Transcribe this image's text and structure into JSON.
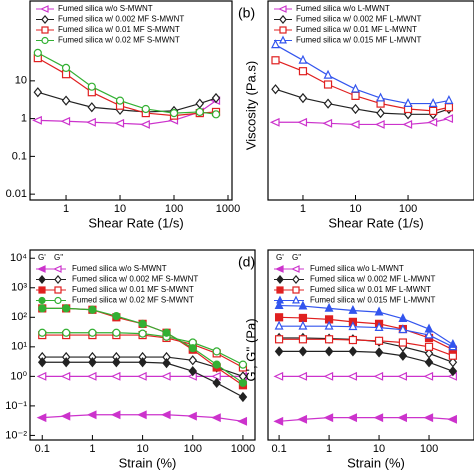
{
  "chart_data": [
    {
      "type": "line",
      "log_x": true,
      "log_y": true,
      "xlabel": "Shear Rate (1/s)",
      "xlim": [
        0.215,
        1186
      ],
      "ylim": [
        0.007,
        1300
      ],
      "xticks": [
        1,
        10,
        100,
        1000
      ],
      "yticks": [
        0.01,
        0.1,
        1,
        10
      ],
      "x": [
        0.3,
        1,
        3,
        10,
        30,
        100,
        300,
        600
      ],
      "series": [
        {
          "name": "Fumed silica w/o S-MWNT",
          "color": "#cc33cc",
          "marker": "triangle-left",
          "values": [
            0.9,
            0.85,
            0.8,
            0.75,
            0.7,
            0.9,
            1.5,
            3
          ]
        },
        {
          "name": "Fumed silica w/ 0.002 MF S-MWNT",
          "color": "#222222",
          "marker": "diamond",
          "values": [
            5,
            3,
            2,
            1.7,
            1.5,
            1.6,
            2.5,
            3.5
          ]
        },
        {
          "name": "Fumed silica w/ 0.01 MF S-MWNT",
          "color": "#e02020",
          "marker": "square",
          "values": [
            40,
            15,
            5,
            2.2,
            1.4,
            1.2,
            1.4,
            1.5
          ]
        },
        {
          "name": "Fumed silica w/ 0.02 MF S-MWNT",
          "color": "#33b033",
          "marker": "circle",
          "values": [
            55,
            22,
            7,
            3,
            1.8,
            1.4,
            1.5,
            1.3
          ]
        }
      ]
    },
    {
      "type": "line",
      "log_x": true,
      "log_y": true,
      "panel_label": "(b)",
      "xlabel": "Shear Rate (1/s)",
      "ylabel": "Viscosity (Pa.s)",
      "xlim": [
        0.216,
        1800
      ],
      "ylim": [
        0.007,
        1300
      ],
      "xticks": [
        1,
        10,
        100
      ],
      "x": [
        0.3,
        1,
        3,
        10,
        30,
        100,
        300,
        600
      ],
      "series": [
        {
          "name": "Fumed silica w/o L-MWNT",
          "color": "#cc33cc",
          "marker": "triangle-left",
          "values": [
            0.8,
            0.8,
            0.75,
            0.7,
            0.7,
            0.7,
            0.8,
            1
          ]
        },
        {
          "name": "Fumed silica w/ 0.002 MF L-MWNT",
          "color": "#222222",
          "marker": "diamond",
          "values": [
            6,
            3.5,
            2.5,
            1.8,
            1.4,
            1.3,
            1.3,
            1.8
          ]
        },
        {
          "name": "Fumed silica w/ 0.01 MF L-MWNT",
          "color": "#e02020",
          "marker": "square",
          "values": [
            35,
            18,
            8,
            4,
            2.5,
            1.8,
            1.6,
            2
          ]
        },
        {
          "name": "Fumed silica w/ 0.015 MF L-MWNT",
          "color": "#3355ee",
          "marker": "triangle-up",
          "values": [
            90,
            35,
            14,
            6,
            3.5,
            2.5,
            2.5,
            3
          ]
        }
      ]
    },
    {
      "type": "line",
      "log_x": true,
      "log_y": true,
      "xlabel": "Strain (%)",
      "legend_headers": [
        "G'",
        "G''"
      ],
      "xlim": [
        0.057,
        1740
      ],
      "ylim": [
        0.007,
        19000
      ],
      "xticks": [
        0.1,
        1,
        10,
        100,
        1000
      ],
      "yticks": [
        {
          "value": 0.01,
          "label": "10⁻²"
        },
        {
          "value": 0.1,
          "label": "10⁻¹"
        },
        {
          "value": 1,
          "label": "10⁰"
        },
        {
          "value": 10,
          "label": "10¹"
        },
        {
          "value": 100,
          "label": "10²"
        },
        {
          "value": 1000,
          "label": "10³"
        },
        {
          "value": 10000,
          "label": "10⁴"
        }
      ],
      "x": [
        0.1,
        0.3,
        1,
        3,
        10,
        30,
        100,
        300,
        1000
      ],
      "series": [
        {
          "name": "Fumed silica w/o S-MWNT",
          "color": "#cc33cc",
          "marker": "triangle-left",
          "storage": [
            0.04,
            0.045,
            0.05,
            0.05,
            0.05,
            0.05,
            0.045,
            0.04,
            0.03
          ],
          "loss": [
            1,
            1,
            1,
            1,
            1,
            1,
            1,
            1,
            1
          ]
        },
        {
          "name": "Fumed silica w/ 0.002 MF S-MWNT",
          "color": "#222222",
          "marker": "diamond",
          "storage": [
            3,
            3,
            3,
            3,
            3,
            2.8,
            1.5,
            0.6,
            0.2
          ],
          "loss": [
            4.5,
            4.5,
            4.5,
            4.5,
            4.5,
            4.5,
            3.5,
            2,
            1
          ]
        },
        {
          "name": "Fumed silica w/ 0.01 MF S-MWNT",
          "color": "#e02020",
          "marker": "square",
          "storage": [
            200,
            200,
            180,
            100,
            60,
            30,
            8,
            2,
            0.5
          ],
          "loss": [
            25,
            25,
            25,
            25,
            25,
            20,
            12,
            6,
            2
          ]
        },
        {
          "name": "Fumed silica w/ 0.02 MF S-MWNT",
          "color": "#33b033",
          "marker": "circle",
          "storage": [
            200,
            200,
            180,
            110,
            60,
            30,
            9,
            2.5,
            0.6
          ],
          "loss": [
            30,
            30,
            30,
            30,
            28,
            22,
            14,
            7,
            2.5
          ]
        }
      ]
    },
    {
      "type": "line",
      "log_x": true,
      "log_y": true,
      "panel_label": "(d)",
      "xlabel": "Strain (%)",
      "ylabel": "G', G'' (Pa)",
      "legend_headers": [
        "G'",
        "G''"
      ],
      "xlim": [
        0.06,
        794
      ],
      "ylim": [
        0.007,
        19000
      ],
      "xticks": [
        0.1,
        1,
        10,
        100
      ],
      "x": [
        0.1,
        0.3,
        1,
        3,
        10,
        30,
        100,
        300
      ],
      "series": [
        {
          "name": "Fumed silica w/o L-MWNT",
          "color": "#cc33cc",
          "marker": "triangle-left",
          "storage": [
            0.03,
            0.035,
            0.04,
            0.04,
            0.04,
            0.04,
            0.04,
            0.035
          ],
          "loss": [
            1,
            1,
            1,
            1,
            1,
            1,
            1,
            1
          ]
        },
        {
          "name": "Fumed silica w/ 0.002 MF L-MWNT",
          "color": "#222222",
          "marker": "diamond",
          "storage": [
            7,
            7,
            7,
            7,
            6.5,
            5,
            3,
            1.5
          ],
          "loss": [
            20,
            20,
            19,
            18,
            15,
            10,
            6,
            3
          ]
        },
        {
          "name": "Fumed silica w/ 0.01 MF L-MWNT",
          "color": "#e02020",
          "marker": "square",
          "storage": [
            100,
            95,
            85,
            70,
            60,
            40,
            20,
            8
          ],
          "loss": [
            18,
            18,
            18,
            17,
            16,
            14,
            10,
            5
          ]
        },
        {
          "name": "Fumed silica w/ 0.015 MF L-MWNT",
          "color": "#3355ee",
          "marker": "triangle-up",
          "storage": [
            250,
            240,
            200,
            170,
            150,
            90,
            40,
            12
          ],
          "loss": [
            50,
            50,
            50,
            48,
            45,
            38,
            25,
            10
          ]
        }
      ]
    }
  ]
}
